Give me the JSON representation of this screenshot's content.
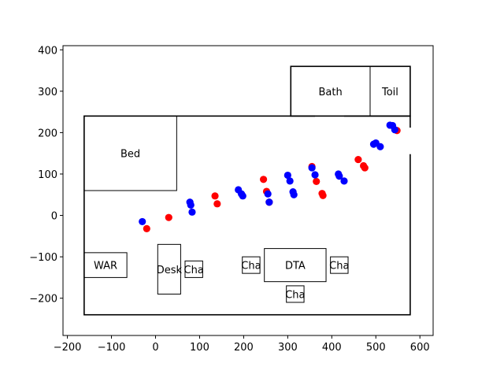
{
  "chart_data": {
    "type": "scatter",
    "xlim": [
      -210,
      630
    ],
    "ylim": [
      -290,
      410
    ],
    "xticks": [
      "−200",
      "−100",
      "0",
      "100",
      "200",
      "300",
      "400",
      "500",
      "600"
    ],
    "yticks": [
      "−200",
      "−100",
      "0",
      "100",
      "200",
      "300",
      "400"
    ],
    "xtick_values": [
      -200,
      -100,
      0,
      100,
      200,
      300,
      400,
      500,
      600
    ],
    "ytick_values": [
      -200,
      -100,
      0,
      100,
      200,
      300,
      400
    ],
    "grid": false,
    "walls": [
      {
        "name": "apartment-outline",
        "x0": -162,
        "y0": -240,
        "x1": 578,
        "y1": 240,
        "gaps": [
          {
            "side": "right",
            "y0": 148,
            "y1": 212
          },
          {
            "side": "top",
            "x0": 362,
            "x1": 428
          }
        ]
      },
      {
        "name": "upper-outline",
        "x0": 307,
        "y0": 240,
        "x1": 578,
        "y1": 360
      }
    ],
    "rooms": [
      {
        "label": "Bed",
        "x0": -162,
        "y0": 60,
        "x1": 48,
        "y1": 240
      },
      {
        "label": "Bath",
        "x0": 307,
        "y0": 240,
        "x1": 487,
        "y1": 360
      },
      {
        "label": "Toil",
        "x0": 487,
        "y0": 240,
        "x1": 578,
        "y1": 360
      },
      {
        "label": "WAR",
        "x0": -162,
        "y0": -150,
        "x1": -65,
        "y1": -90
      },
      {
        "label": "Desk",
        "x0": 5,
        "y0": -190,
        "x1": 57,
        "y1": -70
      },
      {
        "label": "Cha",
        "x0": 67,
        "y0": -150,
        "x1": 107,
        "y1": -110
      },
      {
        "label": "Cha",
        "x0": 197,
        "y0": -140,
        "x1": 237,
        "y1": -100
      },
      {
        "label": "DTA",
        "x0": 247,
        "y0": -160,
        "x1": 387,
        "y1": -80
      },
      {
        "label": "Cha",
        "x0": 397,
        "y0": -140,
        "x1": 437,
        "y1": -100
      },
      {
        "label": "Cha",
        "x0": 297,
        "y0": -210,
        "x1": 337,
        "y1": -170
      }
    ],
    "series": [
      {
        "color": "#ff0000",
        "points": [
          [
            -20,
            -32
          ],
          [
            30,
            -5
          ],
          [
            135,
            47
          ],
          [
            140,
            28
          ],
          [
            245,
            87
          ],
          [
            252,
            58
          ],
          [
            258,
            32
          ],
          [
            355,
            118
          ],
          [
            365,
            82
          ],
          [
            378,
            53
          ],
          [
            380,
            48
          ],
          [
            460,
            135
          ],
          [
            472,
            120
          ],
          [
            475,
            115
          ],
          [
            548,
            205
          ]
        ]
      },
      {
        "color": "#0000ff",
        "points": [
          [
            -30,
            -15
          ],
          [
            78,
            32
          ],
          [
            80,
            25
          ],
          [
            83,
            8
          ],
          [
            188,
            62
          ],
          [
            195,
            52
          ],
          [
            198,
            47
          ],
          [
            255,
            52
          ],
          [
            258,
            32
          ],
          [
            300,
            97
          ],
          [
            305,
            83
          ],
          [
            312,
            57
          ],
          [
            314,
            50
          ],
          [
            355,
            115
          ],
          [
            362,
            98
          ],
          [
            415,
            100
          ],
          [
            417,
            95
          ],
          [
            428,
            83
          ],
          [
            495,
            172
          ],
          [
            500,
            175
          ],
          [
            510,
            166
          ],
          [
            532,
            218
          ],
          [
            538,
            217
          ],
          [
            543,
            207
          ]
        ]
      }
    ]
  }
}
